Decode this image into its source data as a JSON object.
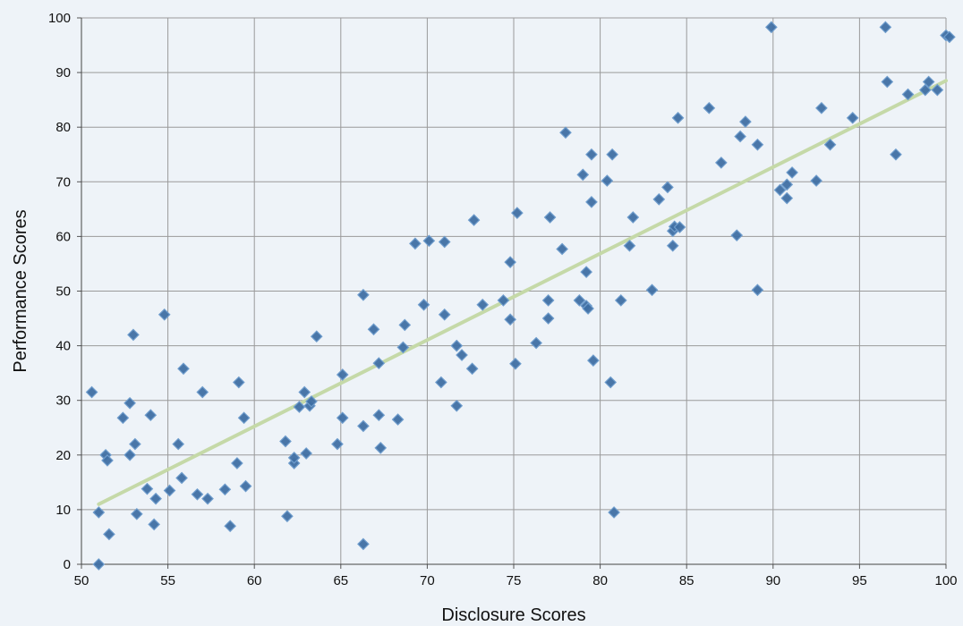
{
  "chart_data": {
    "type": "scatter",
    "title": "",
    "xlabel": "Disclosure Scores",
    "ylabel": "Performance Scores",
    "xlim": [
      50,
      100
    ],
    "ylim": [
      0,
      100
    ],
    "xticks": [
      50,
      55,
      60,
      65,
      70,
      75,
      80,
      85,
      90,
      95,
      100
    ],
    "yticks": [
      0,
      10,
      20,
      30,
      40,
      50,
      60,
      70,
      80,
      90,
      100
    ],
    "grid": true,
    "legend": "none",
    "colors": {
      "marker": "#3f6fa3",
      "trendline": "#c5d9a8",
      "grid": "#9a9a9a",
      "background": "#eef3f8"
    },
    "trendline": {
      "type": "linear",
      "x": [
        51,
        100
      ],
      "y": [
        11,
        88.5
      ]
    },
    "series": [
      {
        "points": [
          [
            50.6,
            31.5
          ],
          [
            51.0,
            9.5
          ],
          [
            51.0,
            0.0
          ],
          [
            51.4,
            20.0
          ],
          [
            51.5,
            19.0
          ],
          [
            51.6,
            5.5
          ],
          [
            52.4,
            26.8
          ],
          [
            52.8,
            29.5
          ],
          [
            52.8,
            20.0
          ],
          [
            53.0,
            42.0
          ],
          [
            53.1,
            22.0
          ],
          [
            53.2,
            9.2
          ],
          [
            53.8,
            13.8
          ],
          [
            54.0,
            27.3
          ],
          [
            54.2,
            7.3
          ],
          [
            54.3,
            12.0
          ],
          [
            54.8,
            45.7
          ],
          [
            55.1,
            13.5
          ],
          [
            55.6,
            22.0
          ],
          [
            55.8,
            15.8
          ],
          [
            55.9,
            35.8
          ],
          [
            56.7,
            12.8
          ],
          [
            57.0,
            31.5
          ],
          [
            57.3,
            12.0
          ],
          [
            58.3,
            13.7
          ],
          [
            58.6,
            7.0
          ],
          [
            59.0,
            18.5
          ],
          [
            59.1,
            33.3
          ],
          [
            59.4,
            26.8
          ],
          [
            59.5,
            14.3
          ],
          [
            61.8,
            22.5
          ],
          [
            61.9,
            8.8
          ],
          [
            62.3,
            18.5
          ],
          [
            62.3,
            19.5
          ],
          [
            62.6,
            28.8
          ],
          [
            62.9,
            31.5
          ],
          [
            63.0,
            20.3
          ],
          [
            63.2,
            29.0
          ],
          [
            63.3,
            29.8
          ],
          [
            63.6,
            41.7
          ],
          [
            64.8,
            22.0
          ],
          [
            65.1,
            26.8
          ],
          [
            65.1,
            34.7
          ],
          [
            66.3,
            25.3
          ],
          [
            66.3,
            49.3
          ],
          [
            66.3,
            3.7
          ],
          [
            66.9,
            43.0
          ],
          [
            67.2,
            27.3
          ],
          [
            67.2,
            36.8
          ],
          [
            67.3,
            21.3
          ],
          [
            68.3,
            26.5
          ],
          [
            68.6,
            39.7
          ],
          [
            68.7,
            43.8
          ],
          [
            69.3,
            58.7
          ],
          [
            69.8,
            47.5
          ],
          [
            70.1,
            59.2
          ],
          [
            70.8,
            33.3
          ],
          [
            71.0,
            45.7
          ],
          [
            71.0,
            59.0
          ],
          [
            71.7,
            29.0
          ],
          [
            71.7,
            40.0
          ],
          [
            72.0,
            38.3
          ],
          [
            72.6,
            35.8
          ],
          [
            72.7,
            63.0
          ],
          [
            73.2,
            47.5
          ],
          [
            74.4,
            48.3
          ],
          [
            74.8,
            55.3
          ],
          [
            74.8,
            44.8
          ],
          [
            75.1,
            36.7
          ],
          [
            75.2,
            64.3
          ],
          [
            76.3,
            40.5
          ],
          [
            77.0,
            48.3
          ],
          [
            77.0,
            45.0
          ],
          [
            77.1,
            63.5
          ],
          [
            77.8,
            57.7
          ],
          [
            78.0,
            79.0
          ],
          [
            78.8,
            48.3
          ],
          [
            79.0,
            71.3
          ],
          [
            79.2,
            53.5
          ],
          [
            79.2,
            47.3
          ],
          [
            79.3,
            46.8
          ],
          [
            79.5,
            75.0
          ],
          [
            79.5,
            66.3
          ],
          [
            79.6,
            37.3
          ],
          [
            80.4,
            70.2
          ],
          [
            80.6,
            33.3
          ],
          [
            80.7,
            75.0
          ],
          [
            80.8,
            9.5
          ],
          [
            81.2,
            48.3
          ],
          [
            81.7,
            58.3
          ],
          [
            81.9,
            63.5
          ],
          [
            83.0,
            50.2
          ],
          [
            83.4,
            66.8
          ],
          [
            83.9,
            69.0
          ],
          [
            84.2,
            58.3
          ],
          [
            84.2,
            61.0
          ],
          [
            84.3,
            61.8
          ],
          [
            84.5,
            81.7
          ],
          [
            84.6,
            61.7
          ],
          [
            86.3,
            83.5
          ],
          [
            87.0,
            73.5
          ],
          [
            87.9,
            60.2
          ],
          [
            88.1,
            78.3
          ],
          [
            88.4,
            81.0
          ],
          [
            89.1,
            76.8
          ],
          [
            89.1,
            50.2
          ],
          [
            89.9,
            98.3
          ],
          [
            90.4,
            68.5
          ],
          [
            90.8,
            67.0
          ],
          [
            90.8,
            69.5
          ],
          [
            91.1,
            71.7
          ],
          [
            92.5,
            70.2
          ],
          [
            92.8,
            83.5
          ],
          [
            93.3,
            76.8
          ],
          [
            94.6,
            81.7
          ],
          [
            96.5,
            98.3
          ],
          [
            96.6,
            88.3
          ],
          [
            97.1,
            75.0
          ],
          [
            97.8,
            86.0
          ],
          [
            98.8,
            86.8
          ],
          [
            99.0,
            88.3
          ],
          [
            99.5,
            86.8
          ],
          [
            100.0,
            96.8
          ],
          [
            100.2,
            96.5
          ]
        ]
      }
    ]
  }
}
